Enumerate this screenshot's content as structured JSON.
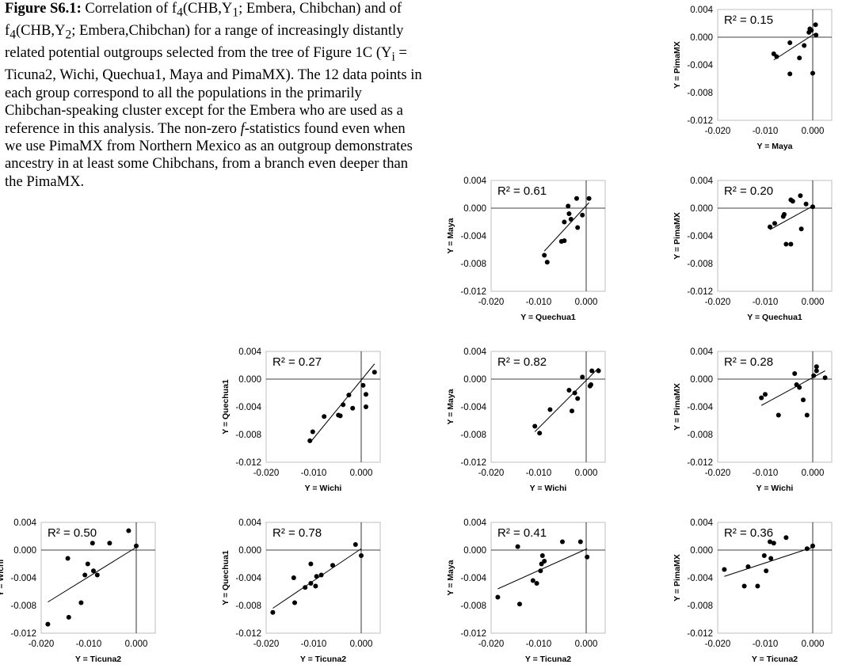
{
  "caption": {
    "label": "Figure S6.1:",
    "body_html": " Correlation of f<sub>4</sub>(CHB,Y<sub>1</sub>; Embera, Chibchan) and of f<sub>4</sub>(CHB,Y<sub>2</sub>; Embera,Chibchan) for a range of increasingly distantly related potential outgroups selected from the tree of Figure 1C (Y<sub>i</sub> = Ticuna2, Wichi, Quechua1, Maya and PimaMX). The 12 data points in each group correspond to all the populations in the primarily Chibchan-speaking cluster except for the Embera who are used as a reference in this analysis. The non-zero <i>f</i>-statistics found even when we use PimaMX from Northern Mexico as an outgroup demonstrates ancestry in at least some Chibchans, from a branch even deeper than the PimaMX."
  },
  "chart_data": [
    {
      "type": "scatter",
      "id": "maya-pimamx",
      "xlabel": "Y = Maya",
      "ylabel": "Y = PimaMX",
      "r2": "R² = 0.15",
      "xlim": [
        -0.02,
        0.004
      ],
      "ylim": [
        -0.012,
        0.004
      ],
      "xticks": [
        "-0.020",
        "-0.010",
        "0.000"
      ],
      "yticks": [
        "0.004",
        "0.000",
        "-0.004",
        "-0.008",
        "-0.012"
      ],
      "points": [
        [
          -0.0008,
          0.0007
        ],
        [
          -0.0006,
          0.0012
        ],
        [
          -0.0003,
          0.001
        ],
        [
          0.0006,
          0.0018
        ],
        [
          0.0007,
          0.0003
        ],
        [
          -0.0018,
          -0.0012
        ],
        [
          -0.0028,
          -0.003
        ],
        [
          -0.0048,
          -0.0008
        ],
        [
          -0.0048,
          -0.0053
        ],
        [
          -0.0076,
          -0.0028
        ],
        [
          -0.0082,
          -0.0024
        ],
        [
          0.0,
          -0.0052
        ]
      ],
      "trend": [
        [
          -0.0082,
          -0.0033
        ],
        [
          0.0006,
          0.0006
        ]
      ]
    },
    {
      "type": "scatter",
      "id": "quechua1-maya",
      "xlabel": "Y = Quechua1",
      "ylabel": "Y = Maya",
      "r2": "R² = 0.61",
      "xlim": [
        -0.02,
        0.004
      ],
      "ylim": [
        -0.012,
        0.004
      ],
      "xticks": [
        "-0.020",
        "-0.010",
        "0.000"
      ],
      "yticks": [
        "0.004",
        "0.000",
        "-0.004",
        "-0.008",
        "-0.012"
      ],
      "points": [
        [
          -0.0088,
          -0.0068
        ],
        [
          -0.0082,
          -0.0078
        ],
        [
          -0.0052,
          -0.0048
        ],
        [
          -0.0046,
          -0.0047
        ],
        [
          -0.0046,
          -0.002
        ],
        [
          -0.0038,
          0.0003
        ],
        [
          -0.0036,
          -0.0008
        ],
        [
          -0.0032,
          -0.0016
        ],
        [
          -0.002,
          0.0014
        ],
        [
          -0.0018,
          -0.0028
        ],
        [
          -0.0008,
          -0.001
        ],
        [
          0.0006,
          0.0014
        ]
      ],
      "trend": [
        [
          -0.0088,
          -0.0062
        ],
        [
          0.0006,
          0.0008
        ]
      ]
    },
    {
      "type": "scatter",
      "id": "quechua1-pimamx",
      "xlabel": "Y = Quechua1",
      "ylabel": "Y = PimaMX",
      "r2": "R² = 0.20",
      "xlim": [
        -0.02,
        0.004
      ],
      "ylim": [
        -0.012,
        0.004
      ],
      "xticks": [
        "-0.020",
        "-0.010",
        "0.000"
      ],
      "yticks": [
        "0.004",
        "0.000",
        "-0.004",
        "-0.008",
        "-0.012"
      ],
      "points": [
        [
          -0.009,
          -0.0027
        ],
        [
          -0.008,
          -0.0022
        ],
        [
          -0.0062,
          -0.0012
        ],
        [
          -0.006,
          -0.0009
        ],
        [
          -0.0056,
          -0.0052
        ],
        [
          -0.0046,
          -0.0052
        ],
        [
          -0.0046,
          0.0012
        ],
        [
          -0.0042,
          0.001
        ],
        [
          -0.0026,
          0.0018
        ],
        [
          -0.0024,
          -0.003
        ],
        [
          -0.0014,
          0.0006
        ],
        [
          0.0,
          0.0002
        ]
      ],
      "trend": [
        [
          -0.009,
          -0.0031
        ],
        [
          0.0,
          0.0003
        ]
      ]
    },
    {
      "type": "scatter",
      "id": "wichi-quechua1",
      "xlabel": "Y = Wichi",
      "ylabel": "Y = Quechua1",
      "r2": "R² = 0.27",
      "xlim": [
        -0.02,
        0.004
      ],
      "ylim": [
        -0.012,
        0.004
      ],
      "xticks": [
        "-0.020",
        "-0.010",
        "0.000"
      ],
      "yticks": [
        "0.004",
        "0.000",
        "-0.004",
        "-0.008",
        "-0.012"
      ],
      "points": [
        [
          -0.0108,
          -0.0089
        ],
        [
          -0.0102,
          -0.0076
        ],
        [
          -0.0078,
          -0.0054
        ],
        [
          -0.0048,
          -0.0052
        ],
        [
          -0.0044,
          -0.0053
        ],
        [
          -0.0038,
          -0.0037
        ],
        [
          -0.0026,
          -0.0023
        ],
        [
          -0.0018,
          -0.0042
        ],
        [
          0.0004,
          -0.0009
        ],
        [
          0.001,
          -0.0022
        ],
        [
          0.001,
          -0.004
        ],
        [
          0.0028,
          0.001
        ]
      ],
      "trend": [
        [
          -0.0108,
          -0.0092
        ],
        [
          0.0028,
          0.0022
        ]
      ]
    },
    {
      "type": "scatter",
      "id": "wichi-maya",
      "xlabel": "Y = Wichi",
      "ylabel": "Y = Maya",
      "r2": "R² = 0.82",
      "xlim": [
        -0.02,
        0.004
      ],
      "ylim": [
        -0.012,
        0.004
      ],
      "xticks": [
        "-0.020",
        "-0.010",
        "0.000"
      ],
      "yticks": [
        "0.004",
        "0.000",
        "-0.004",
        "-0.008",
        "-0.012"
      ],
      "points": [
        [
          -0.0108,
          -0.0068
        ],
        [
          -0.0098,
          -0.0078
        ],
        [
          -0.0076,
          -0.0044
        ],
        [
          -0.0036,
          -0.0016
        ],
        [
          -0.003,
          -0.0046
        ],
        [
          -0.0024,
          -0.002
        ],
        [
          -0.0018,
          -0.0028
        ],
        [
          -0.0008,
          0.0003
        ],
        [
          0.0008,
          -0.001
        ],
        [
          0.001,
          -0.0008
        ],
        [
          0.0012,
          0.0012
        ],
        [
          0.0026,
          0.0012
        ]
      ],
      "trend": [
        [
          -0.0108,
          -0.0076
        ],
        [
          0.0026,
          0.0016
        ]
      ]
    },
    {
      "type": "scatter",
      "id": "wichi-pimamx",
      "xlabel": "Y = Wichi",
      "ylabel": "Y = PimaMX",
      "r2": "R² = 0.28",
      "xlim": [
        -0.02,
        0.004
      ],
      "ylim": [
        -0.012,
        0.004
      ],
      "xticks": [
        "-0.020",
        "-0.010",
        "0.000"
      ],
      "yticks": [
        "0.004",
        "0.000",
        "-0.004",
        "-0.008",
        "-0.012"
      ],
      "points": [
        [
          -0.0108,
          -0.0027
        ],
        [
          -0.01,
          -0.0022
        ],
        [
          -0.0072,
          -0.0052
        ],
        [
          -0.0038,
          0.0008
        ],
        [
          -0.0034,
          -0.0008
        ],
        [
          -0.0028,
          -0.0012
        ],
        [
          -0.002,
          -0.003
        ],
        [
          -0.0012,
          -0.0052
        ],
        [
          0.0002,
          0.0005
        ],
        [
          0.0008,
          0.0018
        ],
        [
          0.0008,
          0.0012
        ],
        [
          0.0026,
          0.0002
        ]
      ],
      "trend": [
        [
          -0.0108,
          -0.0038
        ],
        [
          0.0026,
          0.0012
        ]
      ]
    },
    {
      "type": "scatter",
      "id": "ticuna2-wichi",
      "xlabel": "Y = Ticuna2",
      "ylabel": "Y = Wichi",
      "r2": "R² = 0.50",
      "xlim": [
        -0.02,
        0.004
      ],
      "ylim": [
        -0.012,
        0.004
      ],
      "xticks": [
        "-0.020",
        "-0.010",
        "0.000"
      ],
      "yticks": [
        "0.004",
        "0.000",
        "-0.004",
        "-0.008",
        "-0.012"
      ],
      "points": [
        [
          -0.0186,
          -0.0107
        ],
        [
          -0.0142,
          -0.0097
        ],
        [
          -0.0144,
          -0.0012
        ],
        [
          -0.0116,
          -0.0076
        ],
        [
          -0.0108,
          -0.0036
        ],
        [
          -0.0102,
          -0.002
        ],
        [
          -0.0092,
          0.001
        ],
        [
          -0.009,
          -0.003
        ],
        [
          -0.0082,
          -0.0036
        ],
        [
          -0.0056,
          0.001
        ],
        [
          -0.0016,
          0.0028
        ],
        [
          0.0,
          0.0006
        ]
      ],
      "trend": [
        [
          -0.0186,
          -0.0075
        ],
        [
          0.0,
          0.0004
        ]
      ]
    },
    {
      "type": "scatter",
      "id": "ticuna2-quechua1",
      "xlabel": "Y = Ticuna2",
      "ylabel": "Y = Quechua1",
      "r2": "R² = 0.78",
      "xlim": [
        -0.02,
        0.004
      ],
      "ylim": [
        -0.012,
        0.004
      ],
      "xticks": [
        "-0.020",
        "-0.010",
        "0.000"
      ],
      "yticks": [
        "0.004",
        "0.000",
        "-0.004",
        "-0.008",
        "-0.012"
      ],
      "points": [
        [
          -0.0186,
          -0.009
        ],
        [
          -0.014,
          -0.0076
        ],
        [
          -0.0142,
          -0.004
        ],
        [
          -0.0118,
          -0.0054
        ],
        [
          -0.0106,
          -0.0048
        ],
        [
          -0.0096,
          -0.0052
        ],
        [
          -0.0094,
          -0.0038
        ],
        [
          -0.0084,
          -0.0036
        ],
        [
          -0.0106,
          -0.002
        ],
        [
          -0.006,
          -0.0022
        ],
        [
          -0.0012,
          0.0008
        ],
        [
          0.0,
          -0.0008
        ]
      ],
      "trend": [
        [
          -0.0186,
          -0.0084
        ],
        [
          0.0,
          0.0002
        ]
      ]
    },
    {
      "type": "scatter",
      "id": "ticuna2-maya",
      "xlabel": "Y = Ticuna2",
      "ylabel": "Y = Maya",
      "r2": "R² = 0.41",
      "xlim": [
        -0.02,
        0.004
      ],
      "ylim": [
        -0.012,
        0.004
      ],
      "xticks": [
        "-0.020",
        "-0.010",
        "0.000"
      ],
      "yticks": [
        "0.004",
        "0.000",
        "-0.004",
        "-0.008",
        "-0.012"
      ],
      "points": [
        [
          -0.0186,
          -0.0068
        ],
        [
          -0.0144,
          0.0005
        ],
        [
          -0.014,
          -0.0078
        ],
        [
          -0.0112,
          -0.0044
        ],
        [
          -0.0104,
          -0.0048
        ],
        [
          -0.0092,
          -0.0008
        ],
        [
          -0.0088,
          -0.0016
        ],
        [
          -0.0094,
          -0.002
        ],
        [
          -0.0096,
          -0.003
        ],
        [
          -0.005,
          0.0012
        ],
        [
          -0.0012,
          0.0012
        ],
        [
          0.0002,
          -0.001
        ]
      ],
      "trend": [
        [
          -0.0186,
          -0.0056
        ],
        [
          0.0002,
          0.0002
        ]
      ]
    },
    {
      "type": "scatter",
      "id": "ticuna2-pimamx",
      "xlabel": "Y = Ticuna2",
      "ylabel": "Y = PimaMX",
      "r2": "R² = 0.36",
      "xlim": [
        -0.02,
        0.004
      ],
      "ylim": [
        -0.012,
        0.004
      ],
      "xticks": [
        "-0.020",
        "-0.010",
        "0.000"
      ],
      "yticks": [
        "0.004",
        "0.000",
        "-0.004",
        "-0.008",
        "-0.012"
      ],
      "points": [
        [
          -0.0186,
          -0.0028
        ],
        [
          -0.0144,
          -0.0052
        ],
        [
          -0.0136,
          -0.0024
        ],
        [
          -0.0116,
          -0.0052
        ],
        [
          -0.0102,
          -0.0008
        ],
        [
          -0.0098,
          -0.003
        ],
        [
          -0.009,
          0.0012
        ],
        [
          -0.0088,
          -0.0012
        ],
        [
          -0.0082,
          0.001
        ],
        [
          -0.0056,
          0.0018
        ],
        [
          -0.0012,
          0.0002
        ],
        [
          0.0,
          0.0006
        ]
      ],
      "trend": [
        [
          -0.0186,
          -0.0038
        ],
        [
          0.0,
          0.0004
        ]
      ]
    }
  ]
}
